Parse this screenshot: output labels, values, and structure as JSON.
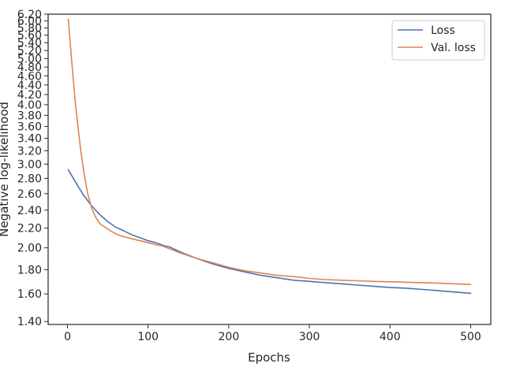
{
  "chart_data": {
    "type": "line",
    "title": "",
    "xlabel": "Epochs",
    "ylabel": "Negative log-likelihood",
    "xlim": [
      -24,
      525
    ],
    "ylim": [
      1.38,
      6.2
    ],
    "y_scale": "log",
    "grid": false,
    "legend_position": "top-right",
    "x_ticks": [
      0,
      100,
      200,
      300,
      400,
      500
    ],
    "x_tick_labels": [
      "0",
      "100",
      "200",
      "300",
      "400",
      "500"
    ],
    "y_ticks": [
      1.4,
      1.6,
      1.8,
      2.0,
      2.2,
      2.4,
      2.6,
      2.8,
      3.0,
      3.2,
      3.4,
      3.6,
      3.8,
      4.0,
      4.2,
      4.4,
      4.6,
      4.8,
      5.0,
      5.2,
      5.4,
      5.6,
      5.8,
      6.0,
      6.2
    ],
    "y_tick_labels": [
      "1.40",
      "1.60",
      "1.80",
      "2.00",
      "2.20",
      "2.40",
      "2.60",
      "2.80",
      "3.00",
      "3.20",
      "3.40",
      "3.60",
      "3.80",
      "4.00",
      "4.20",
      "4.40",
      "4.60",
      "4.80",
      "5.00",
      "5.20",
      "5.40",
      "5.60",
      "5.80",
      "6.00",
      "6.20"
    ],
    "series": [
      {
        "name": "Loss",
        "color": "#4c72b0",
        "x": [
          1,
          10,
          20,
          30,
          40,
          50,
          60,
          70,
          80,
          90,
          100,
          110,
          120,
          126,
          140,
          160,
          180,
          200,
          220,
          240,
          260,
          280,
          300,
          320,
          340,
          360,
          380,
          400,
          420,
          440,
          460,
          480,
          500
        ],
        "y": [
          2.92,
          2.75,
          2.58,
          2.45,
          2.35,
          2.27,
          2.21,
          2.17,
          2.13,
          2.1,
          2.07,
          2.05,
          2.02,
          2.01,
          1.96,
          1.9,
          1.85,
          1.81,
          1.78,
          1.75,
          1.73,
          1.71,
          1.7,
          1.69,
          1.68,
          1.67,
          1.66,
          1.65,
          1.645,
          1.635,
          1.625,
          1.615,
          1.605
        ]
      },
      {
        "name": "Val. loss",
        "color": "#dd8452",
        "x": [
          1,
          5,
          10,
          15,
          20,
          25,
          30,
          35,
          40,
          50,
          60,
          70,
          80,
          90,
          100,
          110,
          117,
          140,
          160,
          180,
          200,
          220,
          240,
          260,
          280,
          300,
          320,
          340,
          360,
          380,
          400,
          420,
          440,
          460,
          480,
          500
        ],
        "y": [
          6.05,
          5.0,
          4.0,
          3.35,
          2.9,
          2.6,
          2.42,
          2.32,
          2.25,
          2.19,
          2.14,
          2.11,
          2.09,
          2.07,
          2.05,
          2.03,
          2.02,
          1.95,
          1.9,
          1.86,
          1.82,
          1.79,
          1.77,
          1.75,
          1.74,
          1.725,
          1.715,
          1.71,
          1.705,
          1.7,
          1.697,
          1.693,
          1.69,
          1.685,
          1.68,
          1.675
        ]
      }
    ]
  }
}
